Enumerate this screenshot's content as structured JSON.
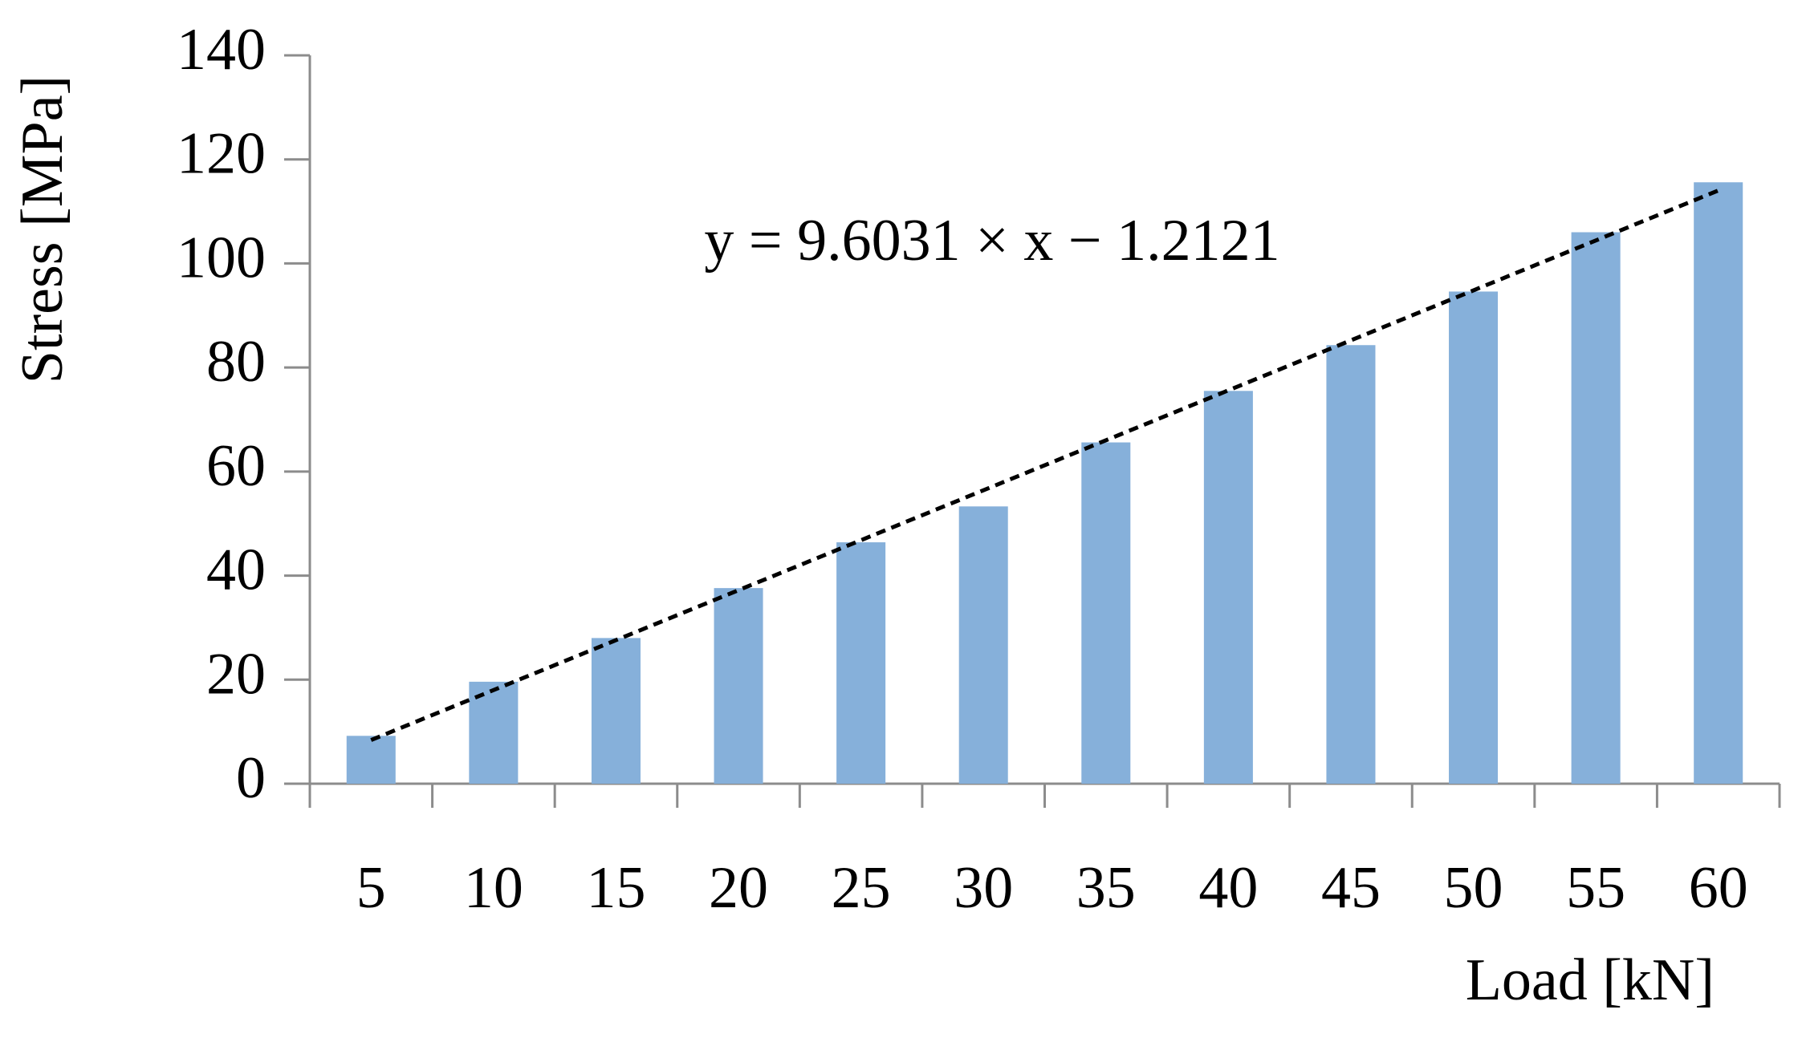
{
  "chart_data": {
    "type": "bar",
    "x_label": "Load [kN]",
    "y_label": "Stress [MPa]",
    "categories": [
      "5",
      "10",
      "15",
      "20",
      "25",
      "30",
      "35",
      "40",
      "45",
      "50",
      "55",
      "60"
    ],
    "values": [
      9.2,
      19.6,
      28,
      37.6,
      46.4,
      53.3,
      65.6,
      75.5,
      84.3,
      94.6,
      106,
      115.6
    ],
    "color": "#86b0da",
    "ylim": [
      0,
      140
    ],
    "yticks": [
      0,
      20,
      40,
      60,
      80,
      100,
      120,
      140
    ],
    "grid": false,
    "annotation": "y = 9.6031 × x − 1.2121",
    "trendline": {
      "slope": 9.6031,
      "intercept": -1.2121,
      "color": "#000000",
      "dashed": true
    }
  }
}
